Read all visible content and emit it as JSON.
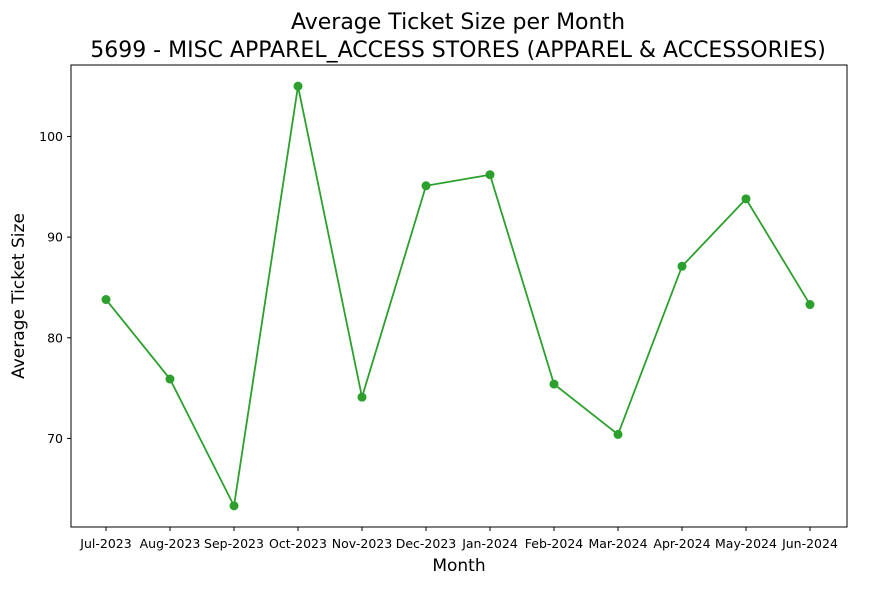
{
  "chart_data": {
    "type": "line",
    "title": "Average Ticket Size per Month",
    "subtitle": "5699 - MISC APPAREL_ACCESS STORES (APPAREL & ACCESSORIES)",
    "xlabel": "Month",
    "ylabel": "Average Ticket Size",
    "categories": [
      "Jul-2023",
      "Aug-2023",
      "Sep-2023",
      "Oct-2023",
      "Nov-2023",
      "Dec-2023",
      "Jan-2024",
      "Feb-2024",
      "Mar-2024",
      "Apr-2024",
      "May-2024",
      "Jun-2024"
    ],
    "series": [
      {
        "values": [
          83.8,
          75.9,
          63.3,
          105.0,
          74.1,
          95.1,
          96.2,
          75.4,
          70.4,
          87.1,
          93.8,
          83.3
        ],
        "color": "#2ca02c",
        "marker": "circle"
      }
    ],
    "yticks": [
      70,
      80,
      90,
      100
    ],
    "ylim": [
      61.2,
      107.1
    ],
    "grid": false,
    "legend": "none"
  }
}
